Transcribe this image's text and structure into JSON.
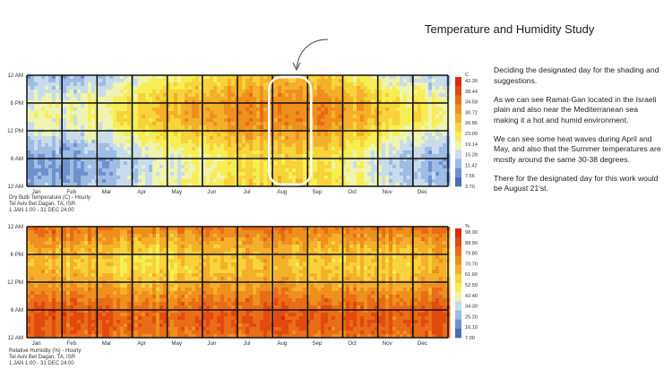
{
  "title": "Temperature and Humidity Study",
  "notes": [
    "Deciding the designated day for the shading and suggestions.",
    "As we can see Ramat-Gan located in the Israeli plain and also near the Mediterranean sea making it a hot and humid environment.",
    "We can see some heat waves during April and May, and also that the Summer temperatures are mostly around the same 30-38 degrees.",
    "There for the designated day for this work would be August 21'st."
  ],
  "colors": {
    "scale": [
      "#4a6db5",
      "#6f92cf",
      "#9dbde4",
      "#c9dcec",
      "#eef3b0",
      "#f6ee54",
      "#f8d33a",
      "#f4b02a",
      "#ee8f1e",
      "#e96c16",
      "#e24a10",
      "#d92a0b"
    ],
    "frame": "#111111",
    "highlight": "#ffffff"
  },
  "chart_data": [
    {
      "type": "heatmap",
      "title": "",
      "caption": [
        "Dry Bulb Temperature (C) - Hourly",
        "Tel Aviv Bet Dagan, TA, ISR",
        "1 JAN 1:00 - 31 DEC 24:00"
      ],
      "x_labels": [
        "Jan",
        "Feb",
        "Mar",
        "Apr",
        "May",
        "Jun",
        "Jul",
        "Aug",
        "Sep",
        "Oct",
        "Nov",
        "Dec"
      ],
      "y_labels": [
        "12 AM",
        "6 PM",
        "12 PM",
        "6 AM",
        "12 AM"
      ],
      "legend_unit": "C",
      "legend_values": [
        "42.30",
        "38.44",
        "34.58",
        "30.72",
        "26.86",
        "23.00",
        "19.14",
        "15.28",
        "11.42",
        "7.56",
        "3.70"
      ],
      "range": [
        3.7,
        42.3
      ],
      "monthly_min": [
        9,
        10,
        12,
        15,
        18,
        21,
        23,
        24,
        22,
        18,
        14,
        11
      ],
      "monthly_max": [
        18,
        19,
        21,
        25,
        28,
        30,
        32,
        32,
        31,
        28,
        24,
        20
      ],
      "highlight_month": "Aug"
    },
    {
      "type": "heatmap",
      "title": "",
      "caption": [
        "Relative Humidity (%) - Hourly",
        "Tel Aviv Bet Dagan, TA, ISR",
        "1 JAN 1:00 - 31 DEC 24:00"
      ],
      "x_labels": [
        "Jan",
        "Feb",
        "Mar",
        "Apr",
        "May",
        "Jun",
        "Jul",
        "Aug",
        "Sep",
        "Oct",
        "Nov",
        "Dec"
      ],
      "y_labels": [
        "12 AM",
        "6 PM",
        "12 PM",
        "6 AM",
        "12 AM"
      ],
      "legend_unit": "%",
      "legend_values": [
        "98.00",
        "88.90",
        "79.80",
        "70.70",
        "61.60",
        "52.50",
        "43.40",
        "34.30",
        "25.20",
        "16.10",
        "7.00"
      ],
      "range": [
        7,
        98
      ],
      "monthly_day": [
        62,
        60,
        55,
        52,
        55,
        58,
        60,
        60,
        58,
        57,
        58,
        62
      ],
      "monthly_night": [
        85,
        84,
        82,
        80,
        80,
        82,
        83,
        84,
        83,
        82,
        83,
        85
      ]
    }
  ]
}
